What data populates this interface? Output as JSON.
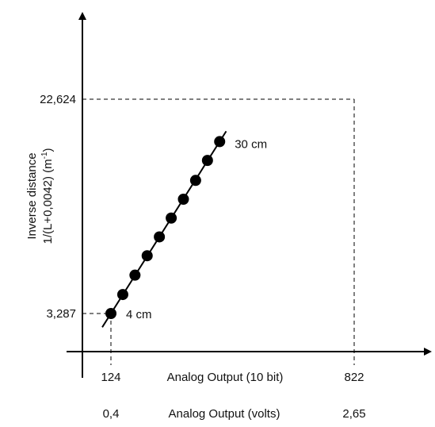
{
  "chart_data": {
    "type": "scatter",
    "title": "",
    "series": [
      {
        "x": [
          124,
          158,
          193,
          228,
          263,
          297,
          332,
          367,
          401,
          436
        ],
        "y": [
          3.287,
          5.0,
          6.75,
          8.5,
          10.2,
          11.9,
          13.6,
          15.3,
          17.1,
          18.8
        ],
        "fit_line": true
      }
    ],
    "x_ticks": {
      "values": [
        124,
        822
      ],
      "labels": [
        "124",
        "822"
      ]
    },
    "y_ticks": {
      "values": [
        3.287,
        22.624
      ],
      "labels": [
        "3,287",
        "22,624"
      ]
    },
    "secondary_x_ticks": {
      "labels": [
        "0,4",
        "2,65"
      ]
    },
    "xlabel": "Analog Output (10 bit)",
    "xlabel_secondary": "Analog Output (volts)",
    "ylabel_line1": "Inverse distance",
    "ylabel_line2": "1/(L+0,0042) (m",
    "ylabel_sup": "-1",
    "ylabel_close": ")",
    "annotations": [
      {
        "label": "4 cm"
      },
      {
        "label": "30 cm"
      }
    ],
    "grid": false,
    "legend": "none"
  }
}
